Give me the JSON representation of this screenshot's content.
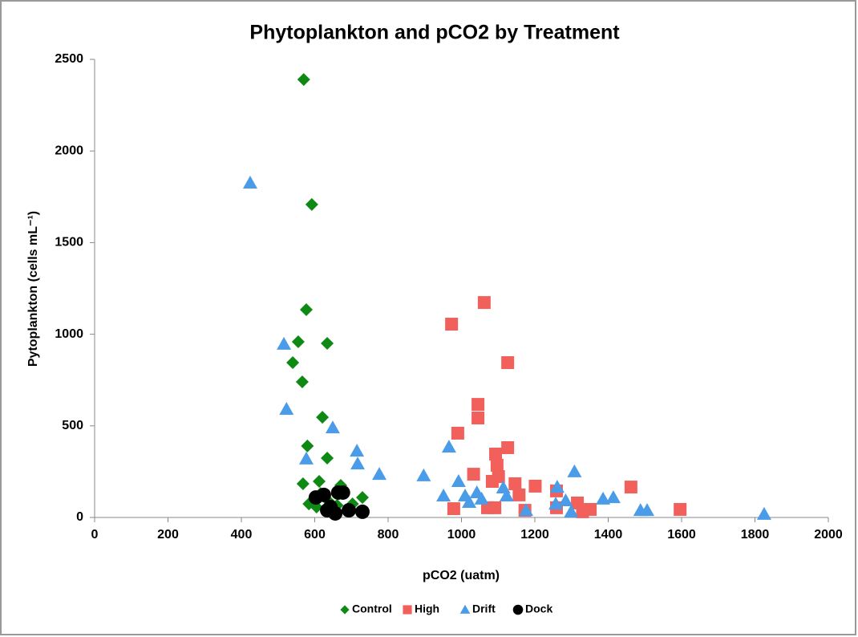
{
  "chart_data": {
    "type": "scatter",
    "title": "Phytoplankton and pCO2 by Treatment",
    "xlabel": "pCO2 (uatm)",
    "ylabel": "Pytoplankton (cells mL⁻¹)",
    "xlim": [
      0,
      2000
    ],
    "xticks": [
      0,
      200,
      400,
      600,
      800,
      1000,
      1200,
      1400,
      1600,
      1800,
      2000
    ],
    "ylim": [
      0,
      2500
    ],
    "yticks": [
      0,
      500,
      1000,
      1500,
      2000,
      2500
    ],
    "legend": "bottom",
    "series": [
      {
        "name": "Control",
        "color": "#0e8a14",
        "marker": "diamond",
        "x": [
          570,
          592,
          577,
          555,
          634,
          540,
          566,
          621,
          580,
          634,
          568,
          612,
          671,
          730,
          584,
          605,
          638,
          661,
          703,
          616
        ],
        "values": [
          2390,
          1708,
          1134,
          959,
          950,
          845,
          740,
          547,
          390,
          324,
          184,
          197,
          175,
          109,
          74,
          57,
          88,
          66,
          74,
          131
        ]
      },
      {
        "name": "High",
        "color": "#f2605c",
        "marker": "square",
        "x": [
          973,
          1062,
          1126,
          1045,
          1045,
          990,
          1093,
          1126,
          1097,
          1033,
          1101,
          1084,
          1146,
          1201,
          1157,
          1259,
          1462,
          979,
          1071,
          1091,
          1173,
          1259,
          1316,
          1330,
          1351,
          1596
        ],
        "values": [
          1055,
          1173,
          845,
          617,
          543,
          460,
          346,
          381,
          285,
          236,
          223,
          197,
          184,
          171,
          123,
          145,
          166,
          48,
          53,
          53,
          39,
          53,
          79,
          31,
          44,
          44
        ]
      },
      {
        "name": "Drift",
        "color": "#4a9be8",
        "marker": "triangle",
        "x": [
          424,
          516,
          523,
          649,
          577,
          715,
          717,
          776,
          897,
          966,
          951,
          992,
          1010,
          1021,
          1042,
          1055,
          1114,
          1123,
          1261,
          1257,
          1284,
          1308,
          1299,
          1386,
          1414,
          1488,
          1506,
          1825,
          1176
        ],
        "values": [
          1826,
          946,
          591,
          490,
          320,
          363,
          293,
          236,
          228,
          385,
          118,
          197,
          118,
          83,
          136,
          101,
          162,
          118,
          166,
          74,
          92,
          250,
          31,
          101,
          109,
          39,
          39,
          18,
          39
        ]
      },
      {
        "name": "Dock",
        "color": "#000000",
        "marker": "circle",
        "x": [
          603,
          625,
          664,
          677,
          643,
          656,
          693,
          730,
          634
        ],
        "values": [
          109,
          123,
          136,
          136,
          57,
          22,
          39,
          31,
          39
        ]
      }
    ]
  }
}
